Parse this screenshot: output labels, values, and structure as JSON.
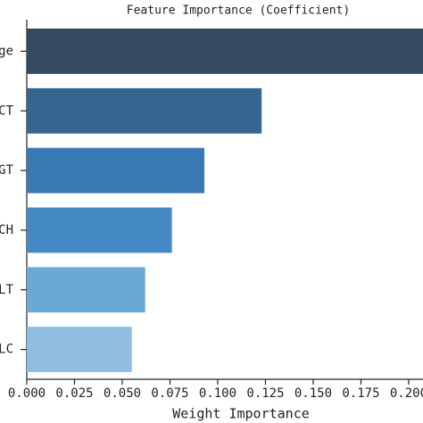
{
  "chart_data": {
    "type": "hbar",
    "title": "Feature Importance (Coefficient)",
    "x_label": "Weight Importance",
    "categories": [
      "ge",
      "CT",
      "GT",
      "CH",
      "LT",
      "LC"
    ],
    "values": [
      0.215,
      0.123,
      0.093,
      0.076,
      0.062,
      0.055
    ],
    "colors": [
      "#354a5e",
      "#35668f",
      "#3a7ab4",
      "#4589c4",
      "#6aa8d6",
      "#8ebde0"
    ],
    "xlim": [
      0,
      0.2075
    ],
    "xticks": [
      {
        "value": 0,
        "label": "0.000"
      },
      0.025,
      {
        "value": 0.05,
        "label": "0.050"
      },
      0.075,
      {
        "value": 0.1,
        "label": "0.100"
      },
      0.125,
      {
        "value": 0.15,
        "label": "0.150"
      },
      0.175,
      {
        "value": 0.2,
        "label": "0.200"
      }
    ]
  }
}
